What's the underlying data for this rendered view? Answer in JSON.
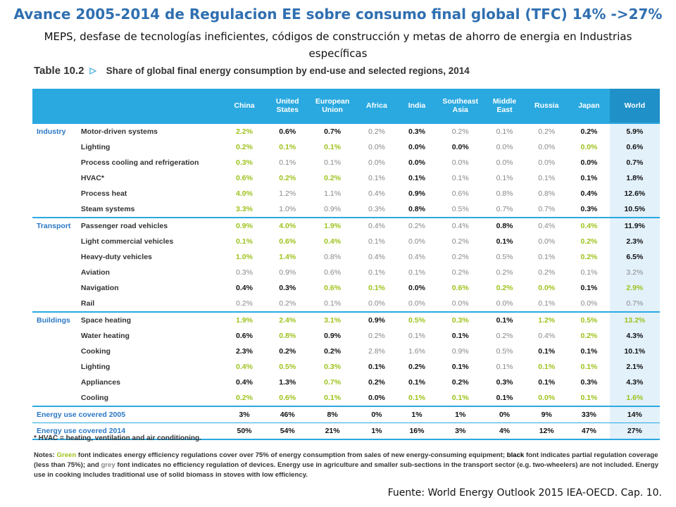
{
  "title": "Avance 2005-2014 de Regulacion EE sobre consumo final global (TFC)  14% ->27%",
  "subtitle": "MEPS, desfase de tecnologías ineficientes, códigos de construcción y metas de ahorro de energia en Industrias específicas",
  "table_heading": {
    "number": "Table 10.2",
    "caption": "Share of global final energy consumption by end-use and selected regions, 2014"
  },
  "columns": [
    "China",
    "United States",
    "European Union",
    "Africa",
    "India",
    "Southeast Asia",
    "Middle East",
    "Russia",
    "Japan",
    "World"
  ],
  "legend_colors": {
    "green": "#9dc21a",
    "black": "#111111",
    "grey": "#888888"
  },
  "groups": [
    {
      "sector": "Industry",
      "rows": [
        {
          "name": "Motor-driven systems",
          "values": [
            [
              "2.2%",
              "g"
            ],
            [
              "0.6%",
              "b"
            ],
            [
              "0.7%",
              "b"
            ],
            [
              "0.2%",
              "x"
            ],
            [
              "0.3%",
              "b"
            ],
            [
              "0.2%",
              "x"
            ],
            [
              "0.1%",
              "x"
            ],
            [
              "0.2%",
              "x"
            ],
            [
              "0.2%",
              "b"
            ],
            [
              "5.9%",
              "b"
            ]
          ]
        },
        {
          "name": "Lighting",
          "values": [
            [
              "0.2%",
              "g"
            ],
            [
              "0.1%",
              "g"
            ],
            [
              "0.1%",
              "g"
            ],
            [
              "0.0%",
              "x"
            ],
            [
              "0.0%",
              "b"
            ],
            [
              "0.0%",
              "b"
            ],
            [
              "0.0%",
              "x"
            ],
            [
              "0.0%",
              "x"
            ],
            [
              "0.0%",
              "g"
            ],
            [
              "0.6%",
              "b"
            ]
          ]
        },
        {
          "name": "Process cooling and refrigeration",
          "values": [
            [
              "0.3%",
              "g"
            ],
            [
              "0.1%",
              "x"
            ],
            [
              "0.1%",
              "x"
            ],
            [
              "0.0%",
              "x"
            ],
            [
              "0.0%",
              "b"
            ],
            [
              "0.0%",
              "x"
            ],
            [
              "0.0%",
              "x"
            ],
            [
              "0.0%",
              "x"
            ],
            [
              "0.0%",
              "b"
            ],
            [
              "0.7%",
              "b"
            ]
          ]
        },
        {
          "name": "HVAC*",
          "values": [
            [
              "0.6%",
              "g"
            ],
            [
              "0.2%",
              "g"
            ],
            [
              "0.2%",
              "g"
            ],
            [
              "0.1%",
              "x"
            ],
            [
              "0.1%",
              "b"
            ],
            [
              "0.1%",
              "x"
            ],
            [
              "0.1%",
              "x"
            ],
            [
              "0.1%",
              "x"
            ],
            [
              "0.1%",
              "b"
            ],
            [
              "1.8%",
              "b"
            ]
          ]
        },
        {
          "name": "Process heat",
          "values": [
            [
              "4.0%",
              "g"
            ],
            [
              "1.2%",
              "x"
            ],
            [
              "1.1%",
              "x"
            ],
            [
              "0.4%",
              "x"
            ],
            [
              "0.9%",
              "b"
            ],
            [
              "0.6%",
              "x"
            ],
            [
              "0.8%",
              "x"
            ],
            [
              "0.8%",
              "x"
            ],
            [
              "0.4%",
              "b"
            ],
            [
              "12.6%",
              "b"
            ]
          ]
        },
        {
          "name": "Steam systems",
          "values": [
            [
              "3.3%",
              "g"
            ],
            [
              "1.0%",
              "x"
            ],
            [
              "0.9%",
              "x"
            ],
            [
              "0.3%",
              "x"
            ],
            [
              "0.8%",
              "b"
            ],
            [
              "0.5%",
              "x"
            ],
            [
              "0.7%",
              "x"
            ],
            [
              "0.7%",
              "x"
            ],
            [
              "0.3%",
              "b"
            ],
            [
              "10.5%",
              "b"
            ]
          ]
        }
      ]
    },
    {
      "sector": "Transport",
      "rows": [
        {
          "name": "Passenger road vehicles",
          "values": [
            [
              "0.9%",
              "g"
            ],
            [
              "4.0%",
              "g"
            ],
            [
              "1.9%",
              "g"
            ],
            [
              "0.4%",
              "x"
            ],
            [
              "0.2%",
              "x"
            ],
            [
              "0.4%",
              "x"
            ],
            [
              "0.8%",
              "b"
            ],
            [
              "0.4%",
              "x"
            ],
            [
              "0.4%",
              "g"
            ],
            [
              "11.9%",
              "b"
            ]
          ]
        },
        {
          "name": "Light commercial vehicles",
          "values": [
            [
              "0.1%",
              "g"
            ],
            [
              "0.6%",
              "g"
            ],
            [
              "0.4%",
              "g"
            ],
            [
              "0.1%",
              "x"
            ],
            [
              "0.0%",
              "x"
            ],
            [
              "0.2%",
              "x"
            ],
            [
              "0.1%",
              "b"
            ],
            [
              "0.0%",
              "x"
            ],
            [
              "0.2%",
              "g"
            ],
            [
              "2.3%",
              "b"
            ]
          ]
        },
        {
          "name": "Heavy-duty vehicles",
          "values": [
            [
              "1.0%",
              "g"
            ],
            [
              "1.4%",
              "g"
            ],
            [
              "0.8%",
              "x"
            ],
            [
              "0.4%",
              "x"
            ],
            [
              "0.4%",
              "x"
            ],
            [
              "0.2%",
              "x"
            ],
            [
              "0.5%",
              "x"
            ],
            [
              "0.1%",
              "x"
            ],
            [
              "0.2%",
              "g"
            ],
            [
              "6.5%",
              "b"
            ]
          ]
        },
        {
          "name": "Aviation",
          "values": [
            [
              "0.3%",
              "x"
            ],
            [
              "0.9%",
              "x"
            ],
            [
              "0.6%",
              "x"
            ],
            [
              "0.1%",
              "x"
            ],
            [
              "0.1%",
              "x"
            ],
            [
              "0.2%",
              "x"
            ],
            [
              "0.2%",
              "x"
            ],
            [
              "0.2%",
              "x"
            ],
            [
              "0.1%",
              "x"
            ],
            [
              "3.2%",
              "x"
            ]
          ]
        },
        {
          "name": "Navigation",
          "values": [
            [
              "0.4%",
              "b"
            ],
            [
              "0.3%",
              "b"
            ],
            [
              "0.6%",
              "g"
            ],
            [
              "0.1%",
              "g"
            ],
            [
              "0.0%",
              "b"
            ],
            [
              "0.6%",
              "g"
            ],
            [
              "0.2%",
              "g"
            ],
            [
              "0.0%",
              "g"
            ],
            [
              "0.1%",
              "b"
            ],
            [
              "2.9%",
              "g"
            ]
          ]
        },
        {
          "name": "Rail",
          "values": [
            [
              "0.2%",
              "x"
            ],
            [
              "0.2%",
              "x"
            ],
            [
              "0.1%",
              "x"
            ],
            [
              "0.0%",
              "x"
            ],
            [
              "0.0%",
              "x"
            ],
            [
              "0.0%",
              "x"
            ],
            [
              "0.0%",
              "x"
            ],
            [
              "0.1%",
              "x"
            ],
            [
              "0.0%",
              "x"
            ],
            [
              "0.7%",
              "x"
            ]
          ]
        }
      ]
    },
    {
      "sector": "Buildings",
      "rows": [
        {
          "name": "Space heating",
          "values": [
            [
              "1.9%",
              "g"
            ],
            [
              "2.4%",
              "g"
            ],
            [
              "3.1%",
              "g"
            ],
            [
              "0.9%",
              "b"
            ],
            [
              "0.5%",
              "g"
            ],
            [
              "0.3%",
              "g"
            ],
            [
              "0.1%",
              "b"
            ],
            [
              "1.2%",
              "g"
            ],
            [
              "0.5%",
              "g"
            ],
            [
              "13.2%",
              "g"
            ]
          ]
        },
        {
          "name": "Water heating",
          "values": [
            [
              "0.6%",
              "b"
            ],
            [
              "0.8%",
              "g"
            ],
            [
              "0.9%",
              "b"
            ],
            [
              "0.2%",
              "x"
            ],
            [
              "0.1%",
              "x"
            ],
            [
              "0.1%",
              "b"
            ],
            [
              "0.2%",
              "x"
            ],
            [
              "0.4%",
              "x"
            ],
            [
              "0.2%",
              "g"
            ],
            [
              "4.3%",
              "b"
            ]
          ]
        },
        {
          "name": "Cooking",
          "values": [
            [
              "2.3%",
              "b"
            ],
            [
              "0.2%",
              "b"
            ],
            [
              "0.2%",
              "b"
            ],
            [
              "2.8%",
              "x"
            ],
            [
              "1.6%",
              "x"
            ],
            [
              "0.9%",
              "x"
            ],
            [
              "0.5%",
              "x"
            ],
            [
              "0.1%",
              "b"
            ],
            [
              "0.1%",
              "b"
            ],
            [
              "10.1%",
              "b"
            ]
          ]
        },
        {
          "name": "Lighting",
          "values": [
            [
              "0.4%",
              "g"
            ],
            [
              "0.5%",
              "g"
            ],
            [
              "0.3%",
              "g"
            ],
            [
              "0.1%",
              "b"
            ],
            [
              "0.2%",
              "b"
            ],
            [
              "0.1%",
              "b"
            ],
            [
              "0.1%",
              "x"
            ],
            [
              "0.1%",
              "g"
            ],
            [
              "0.1%",
              "g"
            ],
            [
              "2.1%",
              "b"
            ]
          ]
        },
        {
          "name": "Appliances",
          "values": [
            [
              "0.4%",
              "b"
            ],
            [
              "1.3%",
              "b"
            ],
            [
              "0.7%",
              "g"
            ],
            [
              "0.2%",
              "b"
            ],
            [
              "0.1%",
              "b"
            ],
            [
              "0.2%",
              "b"
            ],
            [
              "0.3%",
              "b"
            ],
            [
              "0.1%",
              "b"
            ],
            [
              "0.3%",
              "b"
            ],
            [
              "4.3%",
              "b"
            ]
          ]
        },
        {
          "name": "Cooling",
          "values": [
            [
              "0.2%",
              "g"
            ],
            [
              "0.6%",
              "g"
            ],
            [
              "0.1%",
              "g"
            ],
            [
              "0.0%",
              "b"
            ],
            [
              "0.1%",
              "g"
            ],
            [
              "0.1%",
              "g"
            ],
            [
              "0.1%",
              "b"
            ],
            [
              "0.0%",
              "g"
            ],
            [
              "0.1%",
              "g"
            ],
            [
              "1.6%",
              "g"
            ]
          ]
        }
      ]
    }
  ],
  "totals": [
    {
      "label": "Energy use covered 2005",
      "values": [
        "3%",
        "46%",
        "8%",
        "0%",
        "1%",
        "1%",
        "0%",
        "9%",
        "33%",
        "14%"
      ]
    },
    {
      "label": "Energy use covered 2014",
      "values": [
        "50%",
        "54%",
        "21%",
        "1%",
        "16%",
        "3%",
        "4%",
        "12%",
        "47%",
        "27%"
      ]
    }
  ],
  "footnote": "* HVAC = heating, ventilation and air conditioning.",
  "notes": {
    "prefix": "Notes: ",
    "green_word": "Green",
    "part1": " font indicates energy efficiency regulations cover over 75% of energy consumption from sales of new energy-consuming equipment; ",
    "black_word": "black",
    "part2": " font indicates partial regulation coverage (less than 75%); and ",
    "grey_word": "grey",
    "part3": " font indicates no efficiency regulation of devices. Energy use in agriculture and smaller sub-sections in the transport sector (e.g. two-wheelers) are not included. Energy use in cooking includes traditional use of solid biomass in stoves with low efficiency."
  },
  "source": "Fuente:  World Energy Outlook 2015  IEA-OECD. Cap. 10."
}
